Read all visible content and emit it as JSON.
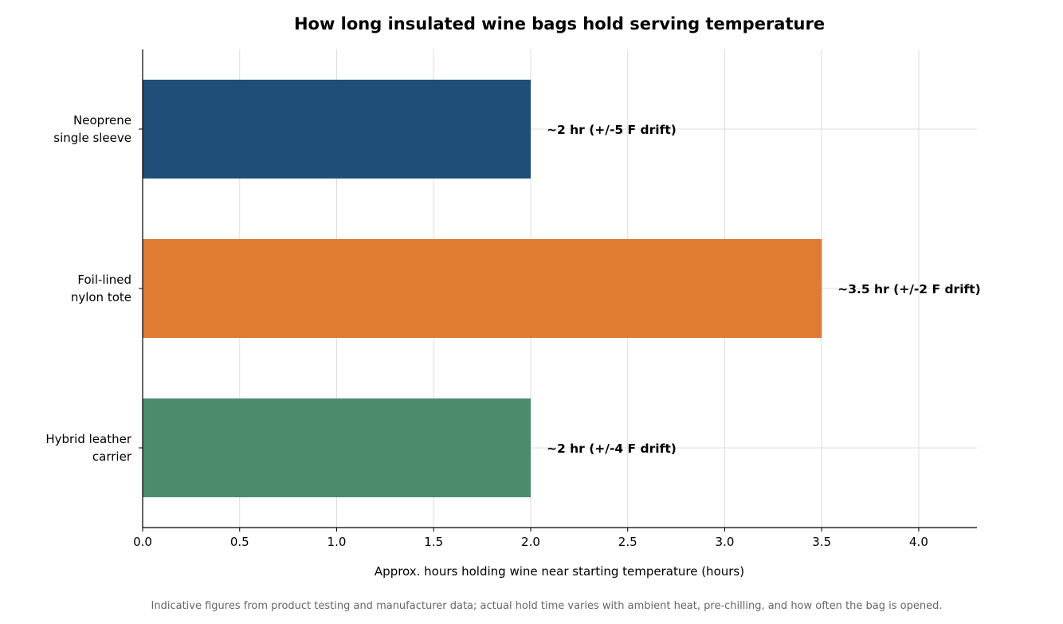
{
  "chart_data": {
    "type": "bar",
    "orientation": "horizontal",
    "title": "How long insulated wine bags hold serving temperature",
    "xlabel": "Approx. hours holding wine near starting temperature (hours)",
    "ylabel": "",
    "xlim": [
      0,
      4.3
    ],
    "x_ticks": [
      "0.0",
      "0.5",
      "1.0",
      "1.5",
      "2.0",
      "2.5",
      "3.0",
      "3.5",
      "4.0"
    ],
    "grid": true,
    "categories": [
      [
        "Neoprene",
        "single sleeve"
      ],
      [
        "Foil-lined",
        "nylon tote"
      ],
      [
        "Hybrid leather",
        "carrier"
      ]
    ],
    "values": [
      2.0,
      3.5,
      2.0
    ],
    "data_labels": [
      "~2 hr  (+/-5 F drift)",
      "~3.5 hr  (+/-2 F drift)",
      "~2 hr  (+/-4 F drift)"
    ],
    "colors": [
      "#1f4e79",
      "#e07b33",
      "#4c8c6d"
    ],
    "footnote": "Indicative figures from product testing and manufacturer data; actual hold time varies with ambient heat, pre-chilling, and how often the bag is opened."
  }
}
